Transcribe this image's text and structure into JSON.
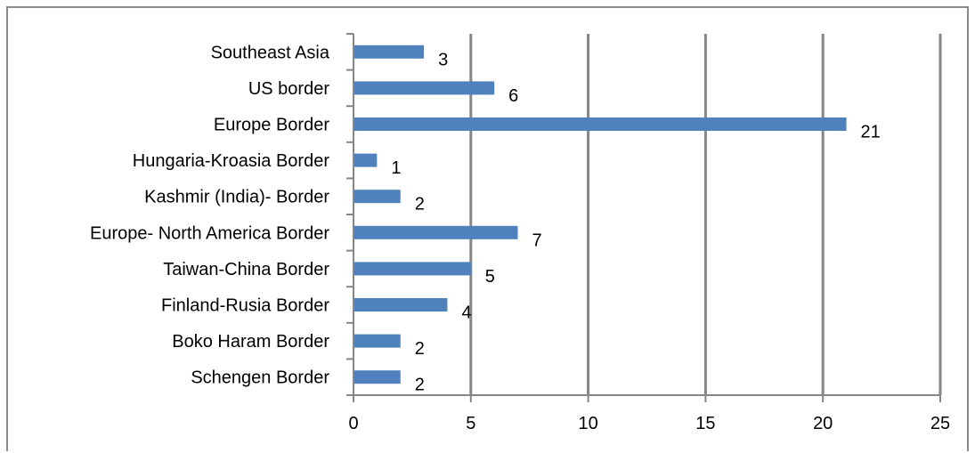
{
  "chart_data": {
    "type": "bar",
    "orientation": "horizontal",
    "categories": [
      "Schengen Border",
      "Boko Haram Border",
      "Finland-Rusia Border",
      "Taiwan-China Border",
      "Europe- North America  Border",
      "Kashmir (India)- Border",
      "Hungaria-Kroasia Border",
      "Europe Border",
      "US border",
      "Southeast Asia"
    ],
    "values": [
      2,
      2,
      4,
      5,
      7,
      2,
      1,
      21,
      6,
      3
    ],
    "data_labels": [
      "2",
      "2",
      "4",
      "5",
      "7",
      "2",
      "1",
      "21",
      "6",
      "3"
    ],
    "xlim": [
      0,
      25
    ],
    "x_ticks": [
      "0",
      "5",
      "10",
      "15",
      "20",
      "25"
    ],
    "grid": true,
    "legend": "none",
    "bar_color": "#4f81bd",
    "title": "",
    "xlabel": "",
    "ylabel": ""
  }
}
